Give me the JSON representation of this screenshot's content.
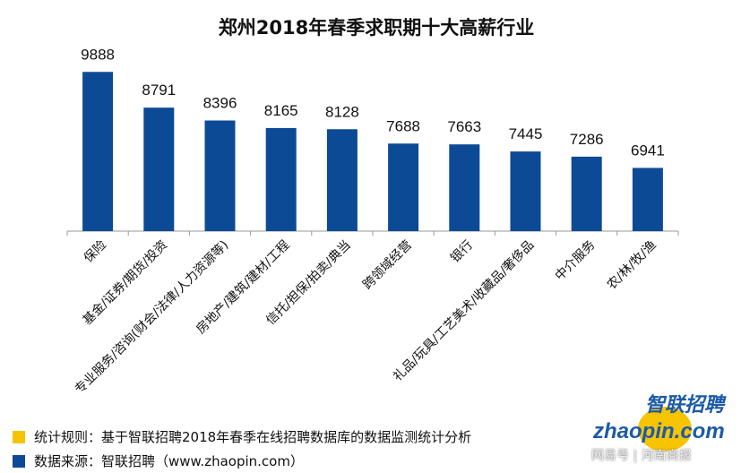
{
  "chart_data": {
    "type": "bar",
    "title": "郑州2018年春季求职期十大高薪行业",
    "categories": [
      "保险",
      "基金/证券/期货/投资",
      "专业服务/咨询(财会/法律/人力资源等)",
      "房地产/建筑/建材/工程",
      "信托/担保/拍卖/典当",
      "跨领域经营",
      "银行",
      "礼品/玩具/工艺美术/收藏品/奢侈品",
      "中介服务",
      "农/林/牧/渔"
    ],
    "values": [
      9888,
      8791,
      8396,
      8165,
      8128,
      7688,
      7663,
      7445,
      7286,
      6941
    ],
    "xlabel": "",
    "ylabel": "",
    "ylim": [
      5000,
      10500
    ],
    "grid": false,
    "bar_color": "#0d4a96"
  },
  "legend": [
    {
      "text": "统计规则：基于智联招聘2018年春季在线招聘数据库的数据监测统计分析",
      "color": "#f5c400"
    },
    {
      "text": "数据来源：智联招聘（www.zhaopin.com）",
      "color": "#0d4a96"
    }
  ],
  "logo": {
    "cn": "智联招聘",
    "en": "zhaopin.com",
    "watermark": "网易号 | 河南商报"
  }
}
